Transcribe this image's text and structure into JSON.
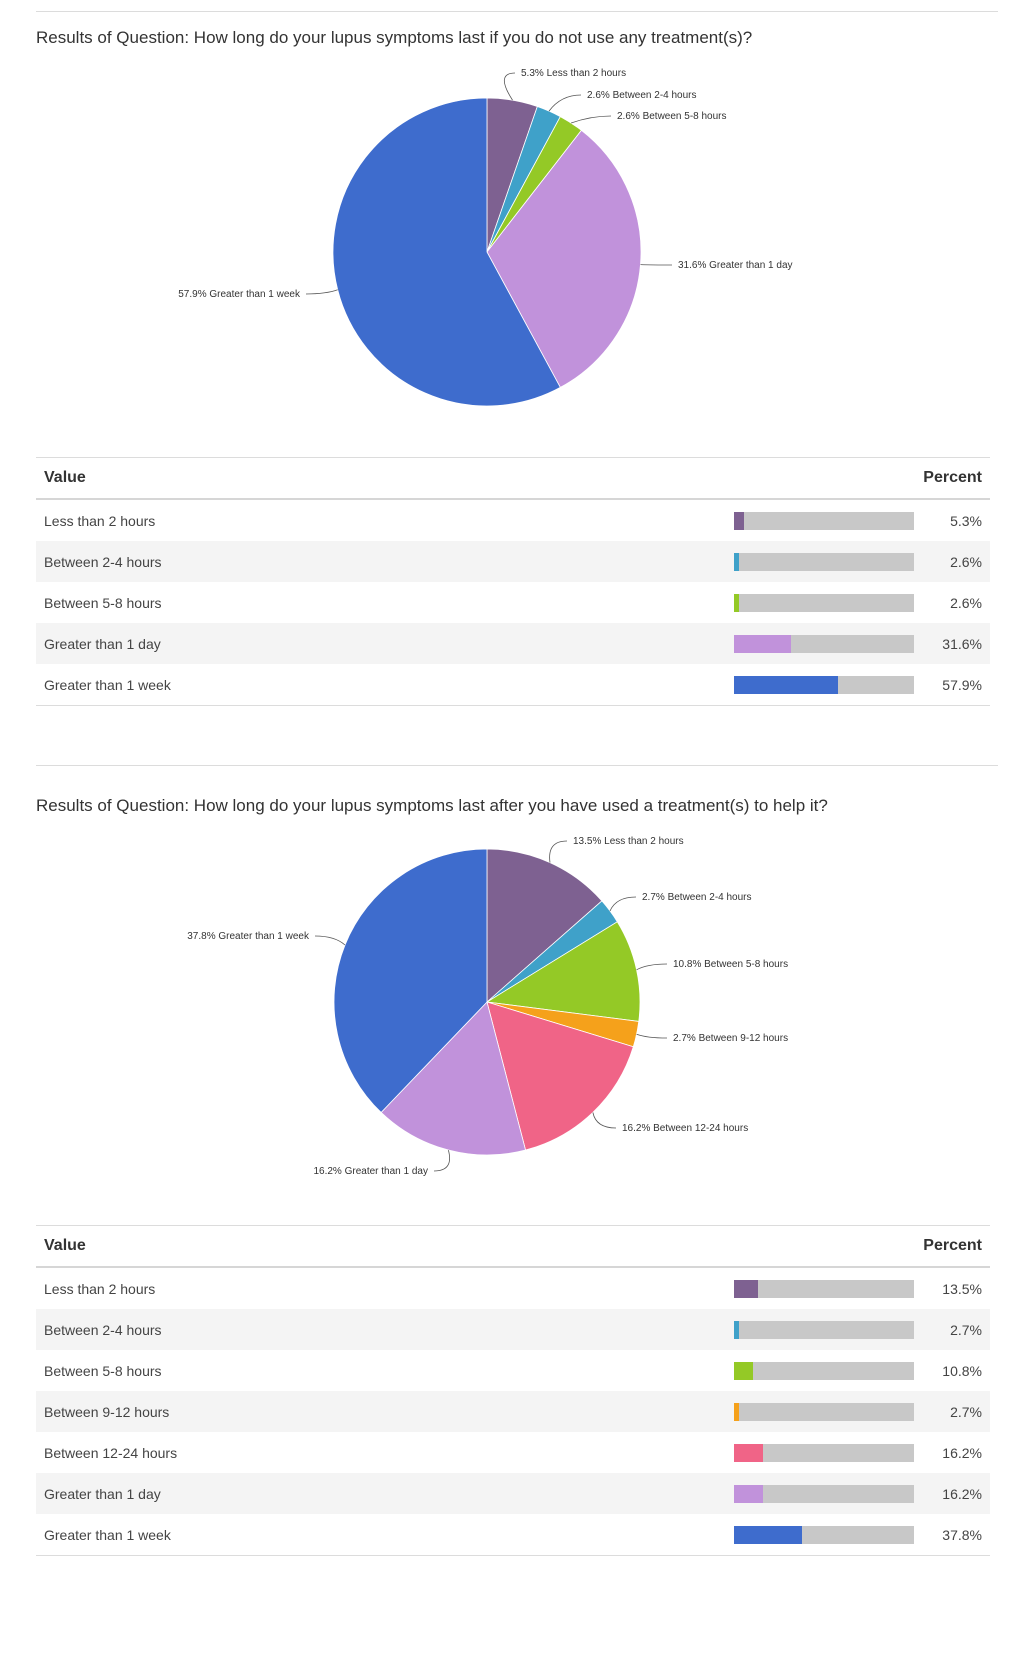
{
  "charts": [
    {
      "title": "Results of Question: How long do your lupus symptoms last if you do not use any treatment(s)?",
      "table_headers": {
        "value": "Value",
        "percent": "Percent"
      },
      "rows": [
        {
          "label": "Less than 2 hours",
          "percent": "5.3%",
          "pie_label": "5.3% Less than 2 hours",
          "color": "#7e6191"
        },
        {
          "label": "Between 2-4 hours",
          "percent": "2.6%",
          "pie_label": "2.6% Between 2-4 hours",
          "color": "#3fa1c9"
        },
        {
          "label": "Between 5-8 hours",
          "percent": "2.6%",
          "pie_label": "2.6% Between 5-8 hours",
          "color": "#94c926"
        },
        {
          "label": "Greater than 1 day",
          "percent": "31.6%",
          "pie_label": "31.6% Greater than 1 day",
          "color": "#c192db"
        },
        {
          "label": "Greater than 1 week",
          "percent": "57.9%",
          "pie_label": "57.9% Greater than 1 week",
          "color": "#3e6ccd"
        }
      ]
    },
    {
      "title": "Results of Question: How long do your lupus symptoms last after you have used a treatment(s) to help it?",
      "table_headers": {
        "value": "Value",
        "percent": "Percent"
      },
      "rows": [
        {
          "label": "Less than 2 hours",
          "percent": "13.5%",
          "pie_label": "13.5% Less than 2 hours",
          "color": "#7e6191"
        },
        {
          "label": "Between 2-4 hours",
          "percent": "2.7%",
          "pie_label": "2.7% Between 2-4 hours",
          "color": "#3fa1c9"
        },
        {
          "label": "Between 5-8 hours",
          "percent": "10.8%",
          "pie_label": "10.8% Between 5-8 hours",
          "color": "#94c926"
        },
        {
          "label": "Between 9-12 hours",
          "percent": "2.7%",
          "pie_label": "2.7% Between 9-12 hours",
          "color": "#f5a11b"
        },
        {
          "label": "Between 12-24 hours",
          "percent": "16.2%",
          "pie_label": "16.2% Between 12-24 hours",
          "color": "#f06487"
        },
        {
          "label": "Greater than 1 day",
          "percent": "16.2%",
          "pie_label": "16.2% Greater than 1 day",
          "color": "#c192db"
        },
        {
          "label": "Greater than 1 week",
          "percent": "37.8%",
          "pie_label": "37.8% Greater than 1 week",
          "color": "#3e6ccd"
        }
      ]
    }
  ],
  "chart_data": [
    {
      "type": "pie",
      "title": "Results of Question: How long do your lupus symptoms last if you do not use any treatment(s)?",
      "categories": [
        "Less than 2 hours",
        "Between 2-4 hours",
        "Between 5-8 hours",
        "Greater than 1 day",
        "Greater than 1 week"
      ],
      "values": [
        5.3,
        2.6,
        2.6,
        31.6,
        57.9
      ]
    },
    {
      "type": "pie",
      "title": "Results of Question: How long do your lupus symptoms last after you have used a treatment(s) to help it?",
      "categories": [
        "Less than 2 hours",
        "Between 2-4 hours",
        "Between 5-8 hours",
        "Between 9-12 hours",
        "Between 12-24 hours",
        "Greater than 1 day",
        "Greater than 1 week"
      ],
      "values": [
        13.5,
        2.7,
        10.8,
        2.7,
        16.2,
        16.2,
        37.8
      ]
    }
  ]
}
